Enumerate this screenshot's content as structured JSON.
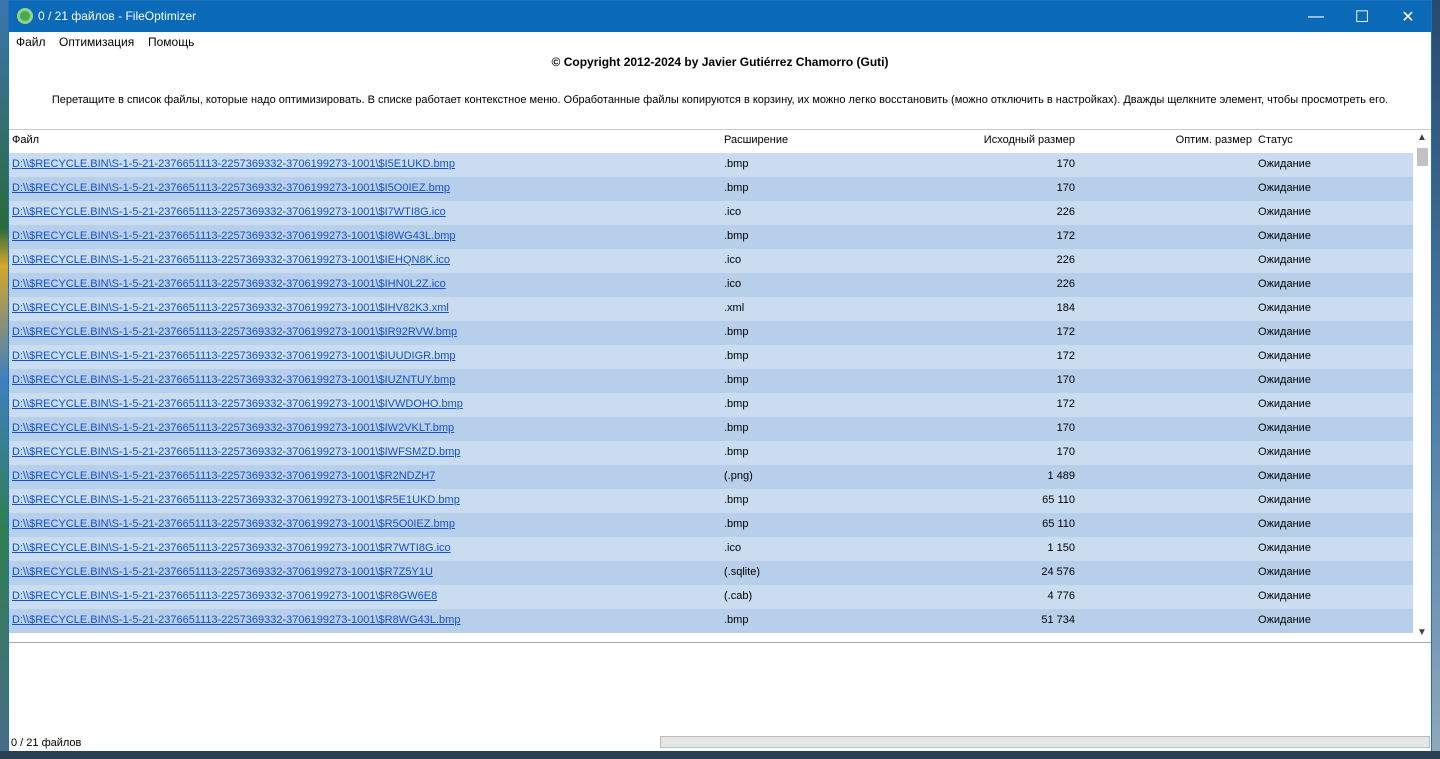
{
  "window": {
    "title": "0 / 21 файлов - FileOptimizer",
    "minimize_glyph": "—",
    "maximize_glyph": "☐",
    "close_glyph": "✕"
  },
  "menu": [
    "Файл",
    "Оптимизация",
    "Помощь"
  ],
  "copyright": "© Copyright 2012-2024 by Javier Gutiérrez Chamorro (Guti)",
  "hint": "Перетащите в список файлы, которые надо оптимизировать. В списке работает контекстное меню. Обработанные файлы копируются в корзину, их можно легко восстановить (можно отключить в настройках). Дважды щелкните элемент, чтобы просмотреть его.",
  "columns": {
    "file": "Файл",
    "ext": "Расширение",
    "original_size": "Исходный размер",
    "optimized_size": "Оптим. размер",
    "status": "Статус"
  },
  "rows": [
    {
      "file": "D:\\\\$RECYCLE.BIN\\S-1-5-21-2376651113-2257369332-3706199273-1001\\$I5E1UKD.bmp",
      "ext": ".bmp",
      "size": "170",
      "status": "Ожидание"
    },
    {
      "file": "D:\\\\$RECYCLE.BIN\\S-1-5-21-2376651113-2257369332-3706199273-1001\\$I5O0IEZ.bmp",
      "ext": ".bmp",
      "size": "170",
      "status": "Ожидание"
    },
    {
      "file": "D:\\\\$RECYCLE.BIN\\S-1-5-21-2376651113-2257369332-3706199273-1001\\$I7WTI8G.ico",
      "ext": ".ico",
      "size": "226",
      "status": "Ожидание"
    },
    {
      "file": "D:\\\\$RECYCLE.BIN\\S-1-5-21-2376651113-2257369332-3706199273-1001\\$I8WG43L.bmp",
      "ext": ".bmp",
      "size": "172",
      "status": "Ожидание"
    },
    {
      "file": "D:\\\\$RECYCLE.BIN\\S-1-5-21-2376651113-2257369332-3706199273-1001\\$IEHQN8K.ico",
      "ext": ".ico",
      "size": "226",
      "status": "Ожидание"
    },
    {
      "file": "D:\\\\$RECYCLE.BIN\\S-1-5-21-2376651113-2257369332-3706199273-1001\\$IHN0L2Z.ico",
      "ext": ".ico",
      "size": "226",
      "status": "Ожидание"
    },
    {
      "file": "D:\\\\$RECYCLE.BIN\\S-1-5-21-2376651113-2257369332-3706199273-1001\\$IHV82K3.xml",
      "ext": ".xml",
      "size": "184",
      "status": "Ожидание"
    },
    {
      "file": "D:\\\\$RECYCLE.BIN\\S-1-5-21-2376651113-2257369332-3706199273-1001\\$IR92RVW.bmp",
      "ext": ".bmp",
      "size": "172",
      "status": "Ожидание"
    },
    {
      "file": "D:\\\\$RECYCLE.BIN\\S-1-5-21-2376651113-2257369332-3706199273-1001\\$IUUDIGR.bmp",
      "ext": ".bmp",
      "size": "172",
      "status": "Ожидание"
    },
    {
      "file": "D:\\\\$RECYCLE.BIN\\S-1-5-21-2376651113-2257369332-3706199273-1001\\$IUZNTUY.bmp",
      "ext": ".bmp",
      "size": "170",
      "status": "Ожидание"
    },
    {
      "file": "D:\\\\$RECYCLE.BIN\\S-1-5-21-2376651113-2257369332-3706199273-1001\\$IVWDOHO.bmp",
      "ext": ".bmp",
      "size": "172",
      "status": "Ожидание"
    },
    {
      "file": "D:\\\\$RECYCLE.BIN\\S-1-5-21-2376651113-2257369332-3706199273-1001\\$IW2VKLT.bmp",
      "ext": ".bmp",
      "size": "170",
      "status": "Ожидание"
    },
    {
      "file": "D:\\\\$RECYCLE.BIN\\S-1-5-21-2376651113-2257369332-3706199273-1001\\$IWFSMZD.bmp",
      "ext": ".bmp",
      "size": "170",
      "status": "Ожидание"
    },
    {
      "file": "D:\\\\$RECYCLE.BIN\\S-1-5-21-2376651113-2257369332-3706199273-1001\\$R2NDZH7",
      "ext": "(.png)",
      "size": "1 489",
      "status": "Ожидание"
    },
    {
      "file": "D:\\\\$RECYCLE.BIN\\S-1-5-21-2376651113-2257369332-3706199273-1001\\$R5E1UKD.bmp",
      "ext": ".bmp",
      "size": "65 110",
      "status": "Ожидание"
    },
    {
      "file": "D:\\\\$RECYCLE.BIN\\S-1-5-21-2376651113-2257369332-3706199273-1001\\$R5O0IEZ.bmp",
      "ext": ".bmp",
      "size": "65 110",
      "status": "Ожидание"
    },
    {
      "file": "D:\\\\$RECYCLE.BIN\\S-1-5-21-2376651113-2257369332-3706199273-1001\\$R7WTI8G.ico",
      "ext": ".ico",
      "size": "1 150",
      "status": "Ожидание"
    },
    {
      "file": "D:\\\\$RECYCLE.BIN\\S-1-5-21-2376651113-2257369332-3706199273-1001\\$R7Z5Y1U",
      "ext": "(.sqlite)",
      "size": "24 576",
      "status": "Ожидание"
    },
    {
      "file": "D:\\\\$RECYCLE.BIN\\S-1-5-21-2376651113-2257369332-3706199273-1001\\$R8GW6E8",
      "ext": "(.cab)",
      "size": "4 776",
      "status": "Ожидание"
    },
    {
      "file": "D:\\\\$RECYCLE.BIN\\S-1-5-21-2376651113-2257369332-3706199273-1001\\$R8WG43L.bmp",
      "ext": ".bmp",
      "size": "51 734",
      "status": "Ожидание"
    }
  ],
  "scrollbar": {
    "up_glyph": "▲",
    "down_glyph": "▼"
  },
  "status_bar": {
    "text": "0 / 21 файлов"
  }
}
